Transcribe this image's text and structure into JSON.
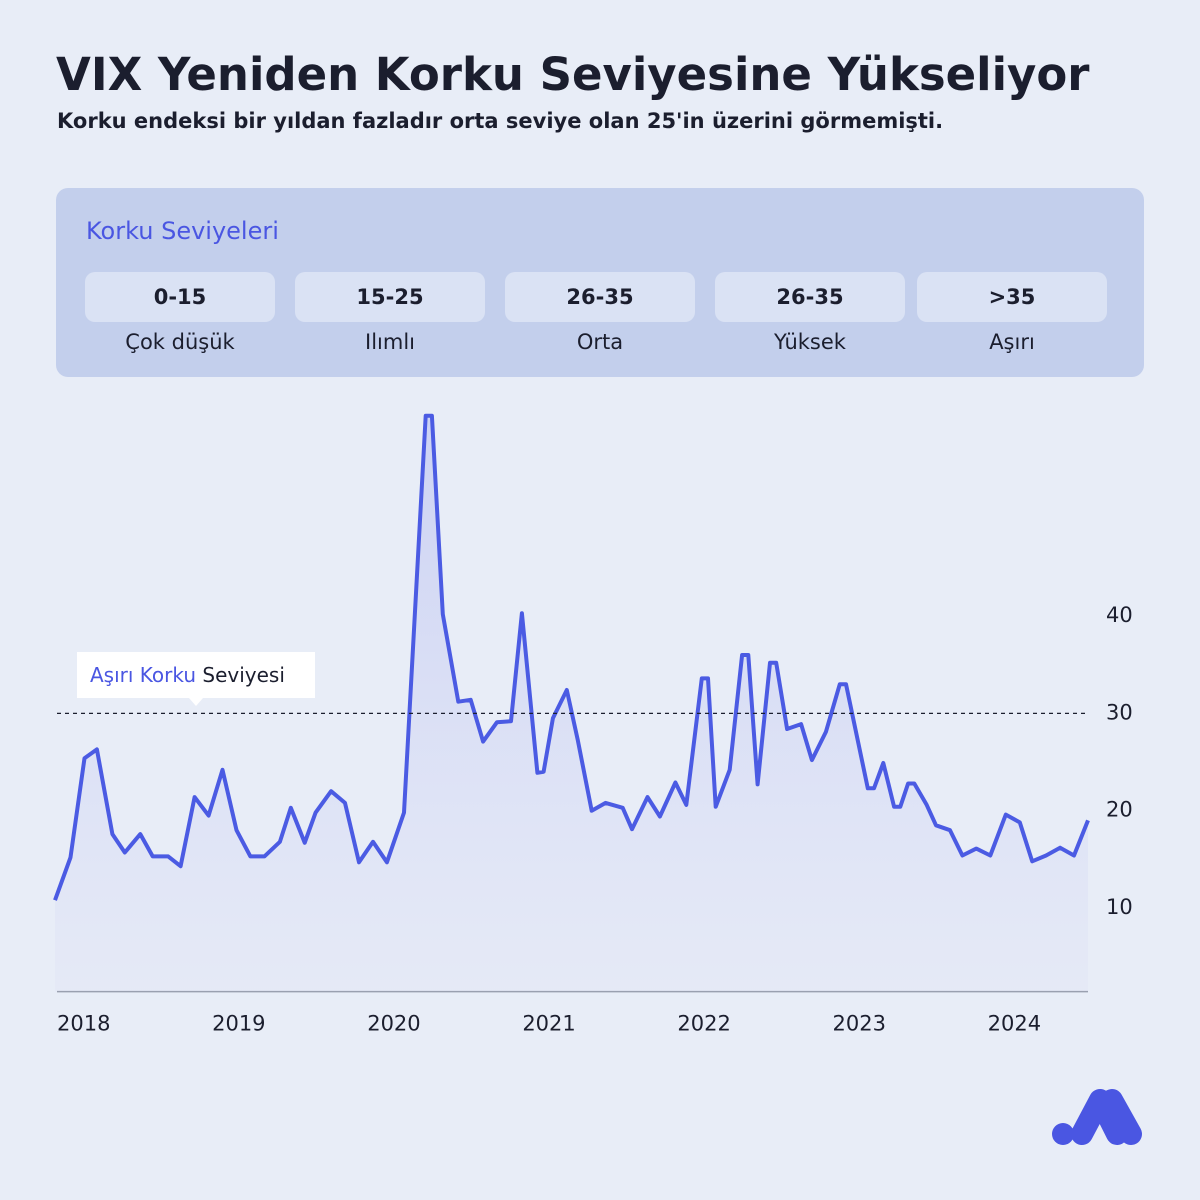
{
  "chart_data": {
    "type": "line",
    "title": "VIX Yeniden Korku Seviyesine Yükseliyor",
    "subtitle": "Korku endeksi bir yıldan fazladır orta seviye olan 25'in üzerini görmemişti.",
    "legend_panel": {
      "title": "Korku Seviyeleri",
      "levels": [
        {
          "range": "0-15",
          "label": "Çok düşük"
        },
        {
          "range": "15-25",
          "label": "Ilımlı"
        },
        {
          "range": "26-35",
          "label": "Orta"
        },
        {
          "range": "26-35",
          "label": "Yüksek"
        },
        {
          "range": ">35",
          "label": "Aşırı"
        }
      ]
    },
    "threshold": {
      "value": 30,
      "label_highlight": "Aşırı Korku",
      "label_rest": "Seviyesi"
    },
    "color": "#4b5be3",
    "x": [
      2018.0,
      2018.1,
      2018.19,
      2018.27,
      2018.37,
      2018.45,
      2018.55,
      2018.63,
      2018.73,
      2018.81,
      2018.9,
      2018.99,
      2019.08,
      2019.17,
      2019.26,
      2019.35,
      2019.45,
      2019.52,
      2019.61,
      2019.68,
      2019.78,
      2019.87,
      2019.96,
      2020.05,
      2020.14,
      2020.25,
      2020.39,
      2020.43,
      2020.5,
      2020.6,
      2020.68,
      2020.76,
      2020.85,
      2020.94,
      2021.01,
      2021.11,
      2021.15,
      2021.21,
      2021.3,
      2021.37,
      2021.46,
      2021.55,
      2021.66,
      2021.72,
      2021.82,
      2021.9,
      2022.0,
      2022.07,
      2022.17,
      2022.21,
      2022.26,
      2022.35,
      2022.43,
      2022.47,
      2022.53,
      2022.61,
      2022.65,
      2022.72,
      2022.81,
      2022.88,
      2022.97,
      2023.06,
      2023.1,
      2023.24,
      2023.28,
      2023.34,
      2023.41,
      2023.45,
      2023.5,
      2023.54,
      2023.62,
      2023.68,
      2023.77,
      2023.85,
      2023.94,
      2024.03,
      2024.13,
      2024.22,
      2024.3,
      2024.39,
      2024.48,
      2024.57,
      2024.66
    ],
    "values": [
      10.8,
      15.2,
      25.4,
      26.3,
      17.6,
      15.7,
      17.6,
      15.3,
      15.3,
      14.3,
      21.4,
      19.5,
      24.2,
      18.0,
      15.3,
      15.3,
      16.8,
      20.3,
      16.7,
      19.8,
      22.0,
      20.8,
      14.7,
      16.8,
      14.7,
      19.8,
      60.6,
      60.6,
      40.2,
      31.2,
      31.4,
      27.1,
      29.1,
      29.2,
      40.3,
      23.9,
      24.0,
      29.5,
      32.4,
      27.3,
      20.0,
      20.8,
      20.3,
      18.1,
      21.4,
      19.4,
      22.9,
      20.6,
      33.6,
      33.6,
      20.4,
      24.2,
      36.0,
      36.0,
      22.7,
      35.2,
      35.2,
      28.4,
      28.9,
      25.2,
      28.1,
      33.0,
      33.0,
      22.3,
      22.3,
      24.9,
      20.4,
      20.4,
      22.8,
      22.8,
      20.6,
      18.5,
      18.0,
      15.4,
      16.1,
      15.4,
      19.6,
      18.8,
      14.8,
      15.4,
      16.2,
      15.4,
      19.0
    ],
    "xlim": [
      2018.0,
      2024.66
    ],
    "xticks": [
      2018,
      2019,
      2020,
      2021,
      2022,
      2023,
      2024
    ],
    "ylim": [
      1.4,
      62
    ],
    "yticks": [
      10,
      20,
      30,
      40
    ]
  }
}
